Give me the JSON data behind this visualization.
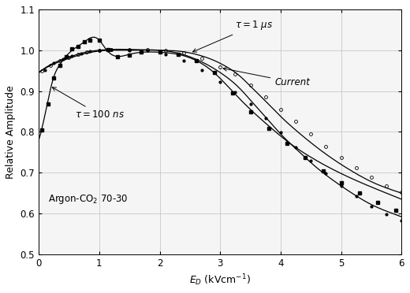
{
  "xlabel": "$E_D$ (kVcm$^{-1}$)",
  "ylabel": "Relative Amplitude",
  "xlim": [
    0,
    6
  ],
  "ylim": [
    0.5,
    1.1
  ],
  "yticks": [
    0.5,
    0.6,
    0.7,
    0.8,
    0.9,
    1.0,
    1.1
  ],
  "xticks": [
    0,
    1,
    2,
    3,
    4,
    5,
    6
  ],
  "annotation_gas": "Argon-CO$_2$ 70-30",
  "annotation_tau100": "$\\tau = 100\\ ns$",
  "annotation_tau1": "$\\tau = 1\\ \\mu s$",
  "annotation_current": "Current",
  "bg_color": "#f0f0f0",
  "grid_color": "#cccccc",
  "curve_tau100_x": [
    0.0,
    0.15,
    0.25,
    0.35,
    0.45,
    0.6,
    0.75,
    0.85,
    1.0,
    1.1,
    1.2,
    1.35,
    1.5,
    1.7,
    2.0,
    2.3,
    2.6,
    2.9,
    3.2,
    3.5,
    3.8,
    4.1,
    4.5,
    5.0,
    5.5,
    6.0
  ],
  "curve_tau100_y": [
    0.78,
    0.875,
    0.935,
    0.965,
    0.985,
    1.005,
    1.02,
    1.03,
    1.025,
    1.005,
    0.99,
    0.985,
    0.99,
    0.995,
    0.995,
    0.99,
    0.975,
    0.945,
    0.9,
    0.855,
    0.815,
    0.778,
    0.738,
    0.698,
    0.665,
    0.635
  ],
  "curve_tau1us_x": [
    0.0,
    0.2,
    0.4,
    0.6,
    0.8,
    1.0,
    1.2,
    1.5,
    2.0,
    2.3,
    2.6,
    2.9,
    3.1,
    3.3,
    3.5,
    3.8,
    4.0,
    4.3,
    4.6,
    4.9,
    5.2,
    5.5,
    5.8,
    6.0
  ],
  "curve_tau1us_y": [
    0.945,
    0.965,
    0.978,
    0.988,
    0.996,
    1.0,
    1.002,
    1.002,
    1.0,
    0.998,
    0.99,
    0.975,
    0.96,
    0.94,
    0.912,
    0.868,
    0.838,
    0.798,
    0.762,
    0.73,
    0.702,
    0.678,
    0.66,
    0.65
  ],
  "curve_current_x": [
    0.0,
    0.2,
    0.4,
    0.6,
    0.8,
    1.0,
    1.2,
    1.5,
    2.0,
    2.3,
    2.6,
    2.9,
    3.1,
    3.3,
    3.5,
    3.8,
    4.0,
    4.3,
    4.6,
    4.9,
    5.2,
    5.5,
    5.8,
    6.0
  ],
  "curve_current_y": [
    0.945,
    0.963,
    0.975,
    0.985,
    0.993,
    0.998,
    1.0,
    1.0,
    1.0,
    0.993,
    0.978,
    0.955,
    0.935,
    0.91,
    0.878,
    0.828,
    0.795,
    0.752,
    0.712,
    0.678,
    0.648,
    0.622,
    0.603,
    0.592
  ],
  "pts_tau100_x": [
    0.05,
    0.15,
    0.25,
    0.35,
    0.45,
    0.55,
    0.65,
    0.75,
    0.85,
    1.0,
    1.15,
    1.3,
    1.5,
    1.7,
    2.0,
    2.3,
    2.6,
    2.9,
    3.2,
    3.5,
    3.8,
    4.1,
    4.4,
    4.7,
    5.0,
    5.3,
    5.6,
    5.9
  ],
  "pts_tau100_y": [
    0.805,
    0.868,
    0.933,
    0.963,
    0.985,
    1.003,
    1.01,
    1.02,
    1.025,
    1.025,
    1.002,
    0.985,
    0.988,
    0.995,
    0.995,
    0.99,
    0.975,
    0.945,
    0.895,
    0.85,
    0.808,
    0.772,
    0.738,
    0.705,
    0.675,
    0.65,
    0.628,
    0.608
  ],
  "pts_tau1us_x": [
    0.05,
    0.2,
    0.35,
    0.5,
    0.65,
    0.8,
    1.0,
    1.2,
    1.5,
    1.8,
    2.1,
    2.4,
    2.7,
    3.0,
    3.25,
    3.5,
    3.75,
    4.0,
    4.25,
    4.5,
    4.75,
    5.0,
    5.25,
    5.5,
    5.75,
    6.0
  ],
  "pts_tau1us_y": [
    0.95,
    0.963,
    0.975,
    0.982,
    0.99,
    0.996,
    1.0,
    1.002,
    1.002,
    1.001,
    0.999,
    0.993,
    0.98,
    0.96,
    0.942,
    0.915,
    0.885,
    0.855,
    0.825,
    0.795,
    0.765,
    0.738,
    0.712,
    0.688,
    0.668,
    0.652
  ],
  "pts_current_x": [
    0.1,
    0.25,
    0.4,
    0.55,
    0.7,
    0.85,
    1.0,
    1.2,
    1.5,
    1.8,
    2.1,
    2.4,
    2.7,
    3.0,
    3.25,
    3.5,
    3.75,
    4.0,
    4.25,
    4.5,
    4.75,
    5.0,
    5.25,
    5.5,
    5.75,
    6.0
  ],
  "pts_current_y": [
    0.952,
    0.968,
    0.978,
    0.986,
    0.992,
    0.997,
    1.0,
    1.001,
    1.0,
    0.999,
    0.99,
    0.975,
    0.952,
    0.922,
    0.898,
    0.868,
    0.833,
    0.798,
    0.763,
    0.73,
    0.698,
    0.668,
    0.642,
    0.618,
    0.598,
    0.582
  ]
}
